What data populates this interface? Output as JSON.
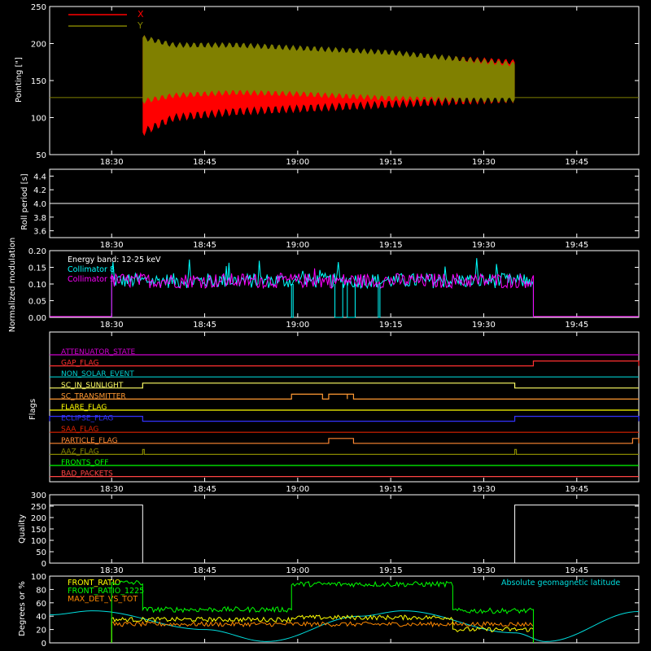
{
  "chart_data": [
    {
      "type": "line",
      "ylabel": "Pointing [\"]",
      "ylim": [
        50,
        250
      ],
      "yticks": [
        50,
        100,
        150,
        200,
        250
      ],
      "x_ticks": [
        "18:30",
        "18:45",
        "19:00",
        "19:15",
        "19:30",
        "19:45"
      ],
      "x_range": [
        "18:20",
        "18:55"
      ],
      "legend": "top-left",
      "series": [
        {
          "name": "X",
          "color": "#ff0000",
          "envelope": {
            "t": [
              "18:35",
              "18:40",
              "18:50",
              "19:00",
              "19:15",
              "19:25",
              "19:35"
            ],
            "lower": [
              80,
              100,
              108,
              112,
              118,
              122,
              125
            ],
            "upper": [
              208,
              196,
              196,
              192,
              185,
              180,
              175
            ]
          }
        },
        {
          "name": "Y",
          "color": "#808000",
          "envelope": {
            "t": [
              "18:35",
              "18:40",
              "18:50",
              "19:00",
              "19:15",
              "19:25",
              "19:35"
            ],
            "lower": [
              122,
              130,
              134,
              132,
              126,
              124,
              124
            ],
            "upper": [
              208,
              198,
              198,
              194,
              188,
              180,
              172
            ]
          }
        }
      ],
      "baseline": 127
    },
    {
      "type": "line",
      "ylabel": "Roll period [s]",
      "ylim": [
        3.5,
        4.5
      ],
      "yticks": [
        3.6,
        3.8,
        4.0,
        4.2,
        4.4
      ],
      "series": [
        {
          "color": "#ffffff",
          "values": [
            4.0
          ]
        }
      ]
    },
    {
      "type": "line",
      "ylabel": "Normalized modulation",
      "ylim": [
        0,
        0.2
      ],
      "yticks": [
        0.0,
        0.05,
        0.1,
        0.15,
        0.2
      ],
      "annotation": "Energy band: 12-25 keV",
      "series": [
        {
          "name": "Collimator 8",
          "color": "#00ffff",
          "range": [
            "18:30",
            "19:38"
          ],
          "level": 0.11
        },
        {
          "name": "Collimator 9",
          "color": "#ff00ff",
          "range": [
            "18:30",
            "19:38"
          ],
          "level": 0.11
        }
      ],
      "cyan_dropouts": [
        [
          "18:59",
          "18:59"
        ],
        [
          "19:06",
          "19:07"
        ],
        [
          "19:08",
          "19:09"
        ],
        [
          "19:13",
          "19:13"
        ]
      ]
    },
    {
      "type": "line",
      "ylabel": "Flags",
      "flags": [
        {
          "name": "ATTENUATOR_STATE",
          "color": "#cc00cc",
          "high": []
        },
        {
          "name": "GAP_FLAG",
          "color": "#ff3030",
          "high": [
            [
              "19:38",
              "19:55"
            ]
          ]
        },
        {
          "name": "NON_SOLAR_EVENT",
          "color": "#00cccc",
          "high": []
        },
        {
          "name": "SC_IN_SUNLIGHT",
          "color": "#ffff66",
          "high": [
            [
              "18:35",
              "19:35"
            ]
          ]
        },
        {
          "name": "SC_TRANSMITTER",
          "color": "#ff9933",
          "high": [
            [
              "18:59",
              "19:04"
            ],
            [
              "19:05",
              "19:08"
            ],
            [
              "19:08",
              "19:09"
            ]
          ]
        },
        {
          "name": "FLARE_FLAG",
          "color": "#ffff00",
          "high": []
        },
        {
          "name": "ECLIPSE_FLAG",
          "color": "#3333ff",
          "high": [
            [
              "18:20",
              "18:35"
            ],
            [
              "19:35",
              "19:55"
            ]
          ]
        },
        {
          "name": "SAA_FLAG",
          "color": "#dd2200",
          "high": []
        },
        {
          "name": "PARTICLE_FLAG",
          "color": "#ff8833",
          "high": [
            [
              "19:05",
              "19:09"
            ],
            [
              "19:54",
              "19:55"
            ]
          ]
        },
        {
          "name": "AAZ_FLAG",
          "color": "#888800",
          "high": [
            [
              "18:35",
              "18:35"
            ],
            [
              "19:35",
              "19:35"
            ]
          ]
        },
        {
          "name": "FRONTS_OFF",
          "color": "#00ff00",
          "high": []
        },
        {
          "name": "BAD_PACKETS",
          "color": "#ff4444",
          "high": []
        }
      ]
    },
    {
      "type": "line",
      "ylabel": "Quality",
      "ylim": [
        0,
        300
      ],
      "yticks": [
        0,
        50,
        100,
        150,
        200,
        250,
        300
      ],
      "series": [
        {
          "color": "#ffffff",
          "values": [
            {
              "t": "18:20",
              "v": 255
            },
            {
              "t": "18:35",
              "v": 255
            },
            {
              "t": "18:35",
              "v": 0
            },
            {
              "t": "19:35",
              "v": 0
            },
            {
              "t": "19:35",
              "v": 255
            },
            {
              "t": "19:55",
              "v": 255
            }
          ]
        }
      ]
    },
    {
      "type": "line",
      "ylabel": "Degrees or %",
      "ylim": [
        0,
        100
      ],
      "yticks": [
        0,
        20,
        40,
        60,
        80,
        100
      ],
      "series": [
        {
          "name": "FRONT_RATIO",
          "color": "#ffff00",
          "level_segments": [
            {
              "from": "18:30",
              "to": "18:59",
              "v": 35
            },
            {
              "from": "18:59",
              "to": "19:25",
              "v": 38
            },
            {
              "from": "19:25",
              "to": "19:38",
              "v": 20
            }
          ]
        },
        {
          "name": "FRONT_RATIO_1225",
          "color": "#00ff00",
          "level_segments": [
            {
              "from": "18:30",
              "to": "18:35",
              "v": 90
            },
            {
              "from": "18:35",
              "to": "18:59",
              "v": 50
            },
            {
              "from": "18:59",
              "to": "19:25",
              "v": 88
            },
            {
              "from": "19:25",
              "to": "19:38",
              "v": 48
            }
          ]
        },
        {
          "name": "MAX_DET_VS_TOT",
          "color": "#ff8800",
          "level_segments": [
            {
              "from": "18:30",
              "to": "19:38",
              "v": 28
            }
          ]
        },
        {
          "name": "Absolute geomagnetic latitude",
          "color": "#00dddd",
          "curve": [
            {
              "t": "18:20",
              "v": 42
            },
            {
              "t": "18:27",
              "v": 48
            },
            {
              "t": "18:45",
              "v": 20
            },
            {
              "t": "18:55",
              "v": 2
            },
            {
              "t": "19:10",
              "v": 40
            },
            {
              "t": "19:17",
              "v": 48
            },
            {
              "t": "19:35",
              "v": 15
            },
            {
              "t": "19:40",
              "v": 2
            },
            {
              "t": "19:55",
              "v": 47
            }
          ]
        }
      ]
    }
  ]
}
